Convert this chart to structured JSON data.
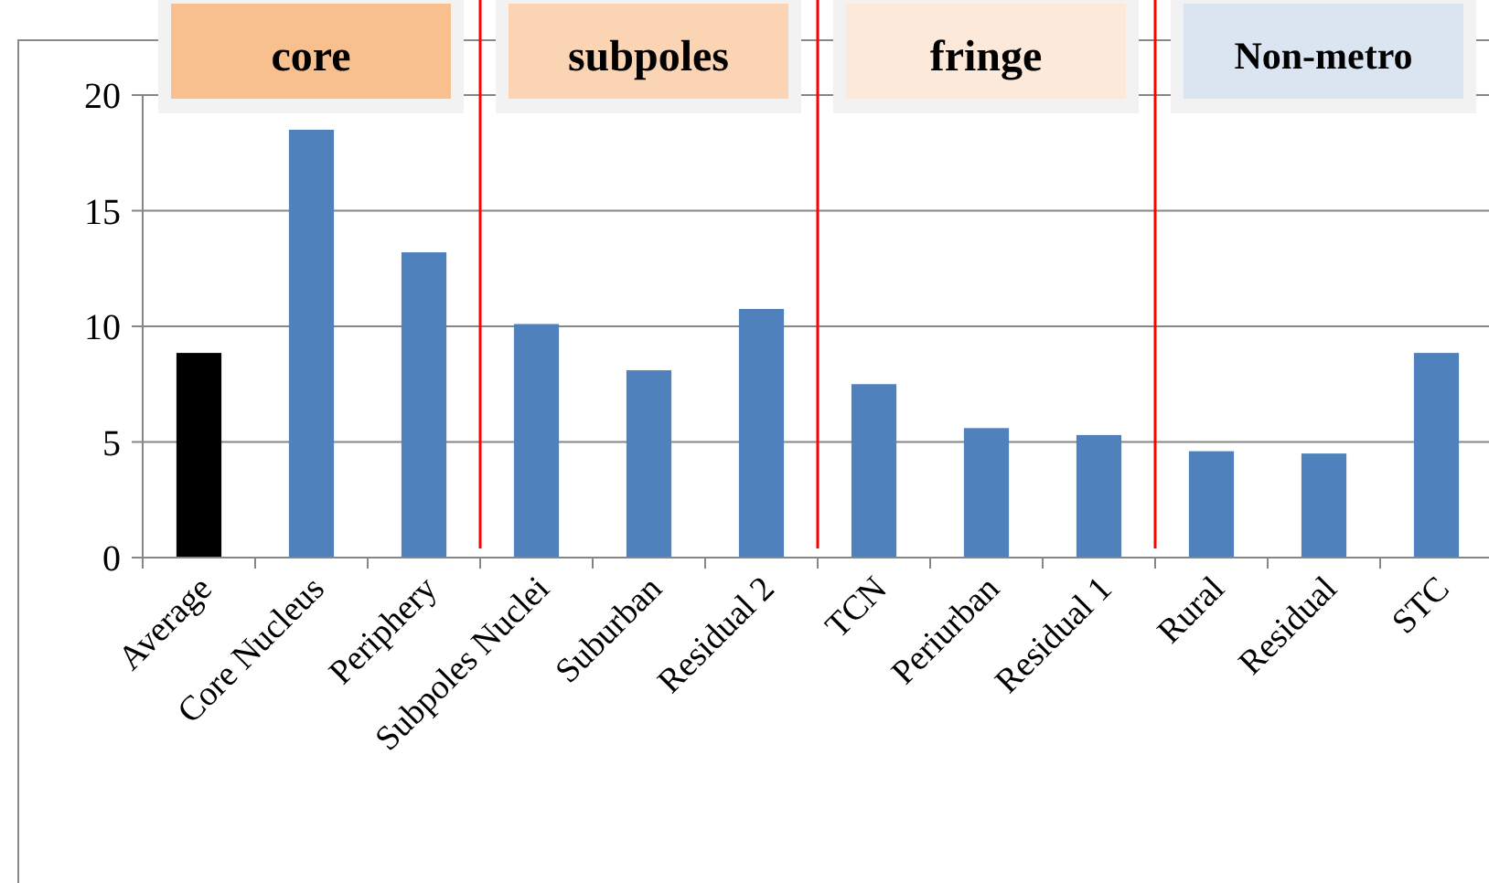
{
  "chart_data": {
    "type": "bar",
    "categories": [
      "Average",
      "Core Nucleus",
      "Periphery",
      "Subpoles Nuclei",
      "Suburban",
      "Residual 2",
      "TCN",
      "Periurban",
      "Residual 1",
      "Rural",
      "Residual",
      "STC"
    ],
    "values": [
      8.85,
      18.5,
      13.2,
      10.1,
      8.1,
      10.75,
      7.5,
      5.6,
      5.3,
      4.6,
      4.5,
      8.85
    ],
    "colors": [
      "#000000",
      "#4f81bd",
      "#4f81bd",
      "#4f81bd",
      "#4f81bd",
      "#4f81bd",
      "#4f81bd",
      "#4f81bd",
      "#4f81bd",
      "#4f81bd",
      "#4f81bd",
      "#4f81bd"
    ],
    "ylim": [
      0,
      20
    ],
    "yticks": [
      0,
      5,
      10,
      15,
      20
    ],
    "grid": "y",
    "annotations": [
      "core",
      "subpoles",
      "fringe",
      "Non-metro"
    ]
  }
}
